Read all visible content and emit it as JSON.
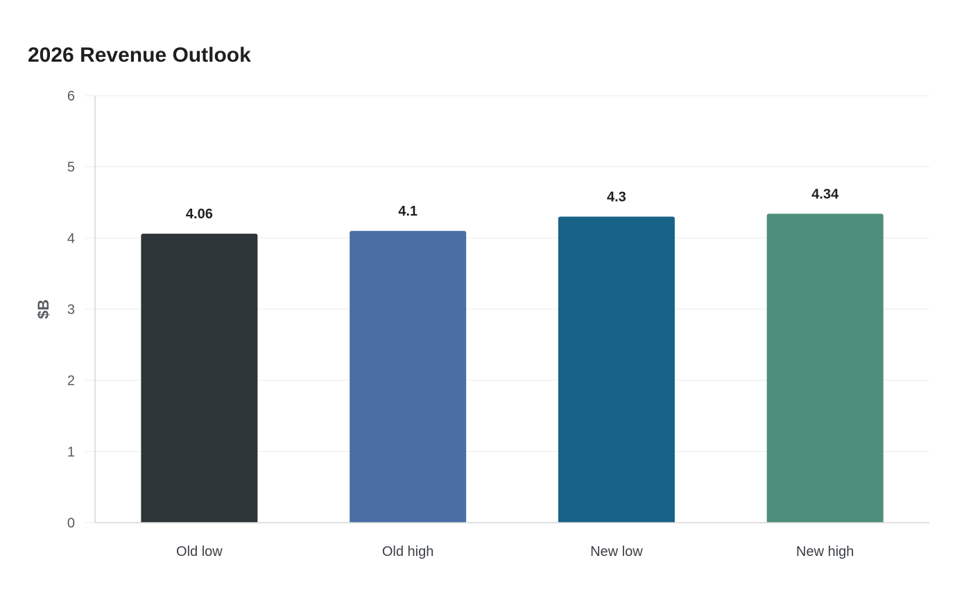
{
  "chart_data": {
    "type": "bar",
    "title": "2026 Revenue Outlook",
    "xlabel": "",
    "ylabel": "$B",
    "ylim": [
      0,
      6
    ],
    "yticks": [
      0,
      1,
      2,
      3,
      4,
      5,
      6
    ],
    "grid": true,
    "legend": "none",
    "categories": [
      "Old low",
      "Old high",
      "New low",
      "New high"
    ],
    "values": [
      4.06,
      4.1,
      4.3,
      4.34
    ],
    "data_labels": [
      "4.06",
      "4.1",
      "4.3",
      "4.34"
    ],
    "colors": [
      "#2e3538",
      "#4a6fa5",
      "#186288",
      "#4e8f7c"
    ]
  }
}
